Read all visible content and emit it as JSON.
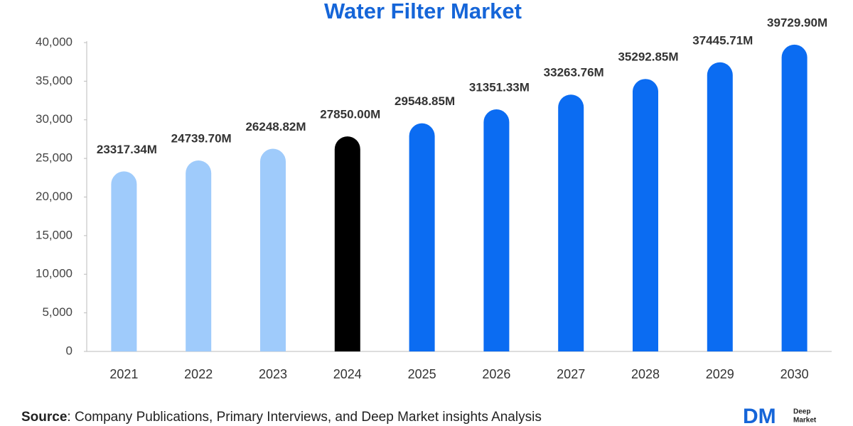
{
  "chart_data": {
    "type": "bar",
    "title": "Water Filter Market",
    "categories": [
      "2021",
      "2022",
      "2023",
      "2024",
      "2025",
      "2026",
      "2027",
      "2028",
      "2029",
      "2030"
    ],
    "values": [
      23317.34,
      24739.7,
      26248.82,
      27850.0,
      29548.85,
      31351.33,
      33263.76,
      35292.85,
      37445.71,
      39729.9
    ],
    "value_labels": [
      "23317.34M",
      "24739.70M",
      "26248.82M",
      "27850.00M",
      "29548.85M",
      "31351.33M",
      "33263.76M",
      "35292.85M",
      "37445.71M",
      "39729.90M"
    ],
    "colors": [
      "#9fcbfb",
      "#9fcbfb",
      "#9fcbfb",
      "#000000",
      "#0b6cf2",
      "#0b6cf2",
      "#0b6cf2",
      "#0b6cf2",
      "#0b6cf2",
      "#0b6cf2"
    ],
    "ylim": [
      0,
      40000
    ],
    "yticks": [
      0,
      {
        "value": 5000,
        "label": "5,000"
      },
      {
        "value": 10000,
        "label": "10,000"
      },
      {
        "value": 15000,
        "label": "15,000"
      },
      {
        "value": 20000,
        "label": "20,000"
      },
      {
        "value": 25000,
        "label": "25,000"
      },
      {
        "value": 30000,
        "label": "30,000"
      },
      {
        "value": 35000,
        "label": "35,000"
      },
      {
        "value": 40000,
        "label": "40,000"
      }
    ],
    "grid": false
  },
  "footer": {
    "source_label": "Source",
    "source_text": ": Company Publications, Primary Interviews, and Deep Market insights Analysis",
    "logo_mark": "DM",
    "logo_line1": "Deep",
    "logo_line2": "Market"
  }
}
